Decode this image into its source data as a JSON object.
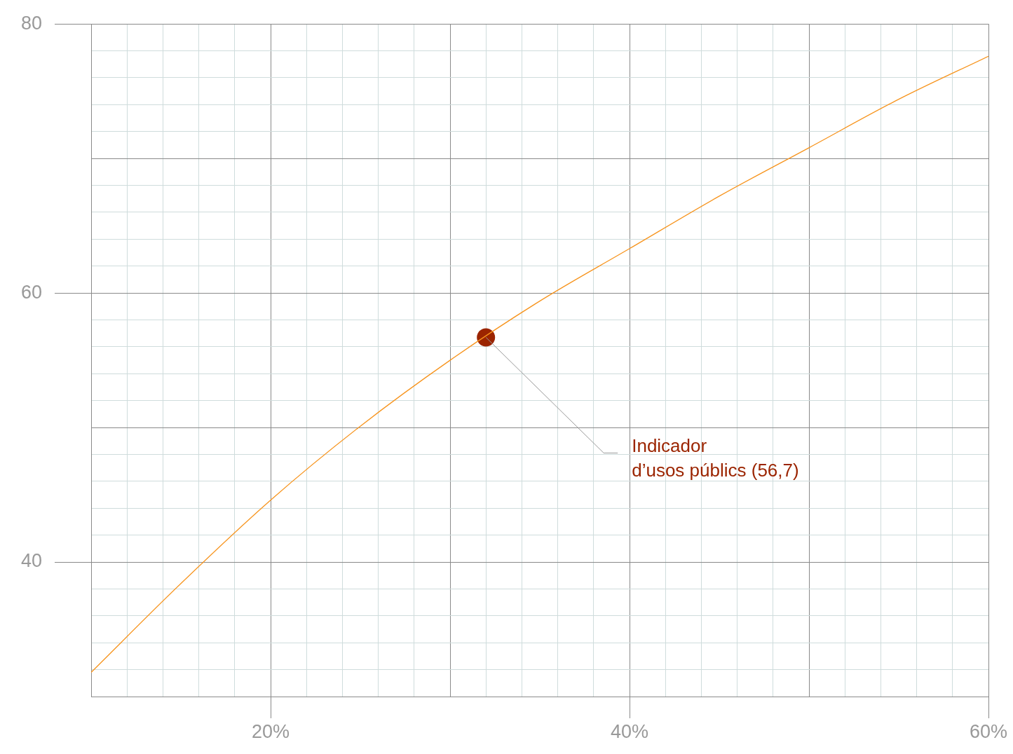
{
  "chart_data": {
    "type": "line",
    "x": [
      10,
      15,
      20,
      25,
      30,
      35,
      40,
      45,
      50,
      55,
      60
    ],
    "series": [
      {
        "type": "line",
        "color": "#f7941d",
        "marker": "none",
        "values": [
          31.8,
          38.4,
          44.6,
          50.1,
          55.0,
          59.4,
          63.3,
          67.2,
          70.8,
          74.4,
          77.6
        ]
      },
      {
        "type": "scatter",
        "x": [
          32
        ],
        "color": "#9b2400",
        "marker": "circle",
        "values": [
          56.7
        ]
      }
    ],
    "xlim": [
      10,
      60
    ],
    "ylim": [
      30,
      80
    ],
    "xticks": [
      {
        "value": 10,
        "label": null
      },
      {
        "value": 12,
        "label": null
      },
      {
        "value": 14,
        "label": null
      },
      {
        "value": 16,
        "label": null
      },
      {
        "value": 18,
        "label": null
      },
      {
        "value": 20,
        "label": "20%"
      },
      {
        "value": 22,
        "label": null
      },
      {
        "value": 24,
        "label": null
      },
      {
        "value": 26,
        "label": null
      },
      {
        "value": 28,
        "label": null
      },
      {
        "value": 30,
        "label": null
      },
      {
        "value": 32,
        "label": null
      },
      {
        "value": 34,
        "label": null
      },
      {
        "value": 36,
        "label": null
      },
      {
        "value": 38,
        "label": null
      },
      {
        "value": 40,
        "label": "40%"
      },
      {
        "value": 42,
        "label": null
      },
      {
        "value": 44,
        "label": null
      },
      {
        "value": 46,
        "label": null
      },
      {
        "value": 48,
        "label": null
      },
      {
        "value": 50,
        "label": null
      },
      {
        "value": 52,
        "label": null
      },
      {
        "value": 54,
        "label": null
      },
      {
        "value": 56,
        "label": null
      },
      {
        "value": 58,
        "label": null
      },
      {
        "value": 60,
        "label": "60%"
      }
    ],
    "yticks": [
      {
        "value": 30,
        "label": null
      },
      {
        "value": 32,
        "label": null
      },
      {
        "value": 34,
        "label": null
      },
      {
        "value": 36,
        "label": null
      },
      {
        "value": 38,
        "label": null
      },
      {
        "value": 40,
        "label": "40"
      },
      {
        "value": 42,
        "label": null
      },
      {
        "value": 44,
        "label": null
      },
      {
        "value": 46,
        "label": null
      },
      {
        "value": 48,
        "label": null
      },
      {
        "value": 50,
        "label": null
      },
      {
        "value": 52,
        "label": null
      },
      {
        "value": 54,
        "label": null
      },
      {
        "value": 56,
        "label": null
      },
      {
        "value": 58,
        "label": null
      },
      {
        "value": 60,
        "label": "60"
      },
      {
        "value": 62,
        "label": null
      },
      {
        "value": 64,
        "label": null
      },
      {
        "value": 66,
        "label": null
      },
      {
        "value": 68,
        "label": null
      },
      {
        "value": 70,
        "label": null
      },
      {
        "value": 72,
        "label": null
      },
      {
        "value": 74,
        "label": null
      },
      {
        "value": 76,
        "label": null
      },
      {
        "value": 78,
        "label": null
      },
      {
        "value": 80,
        "label": "80"
      }
    ],
    "grid": true,
    "annotations": [
      {
        "text": "Indicador\nd’usos públics (56,7)",
        "x": 32,
        "y": 56.7
      }
    ]
  }
}
